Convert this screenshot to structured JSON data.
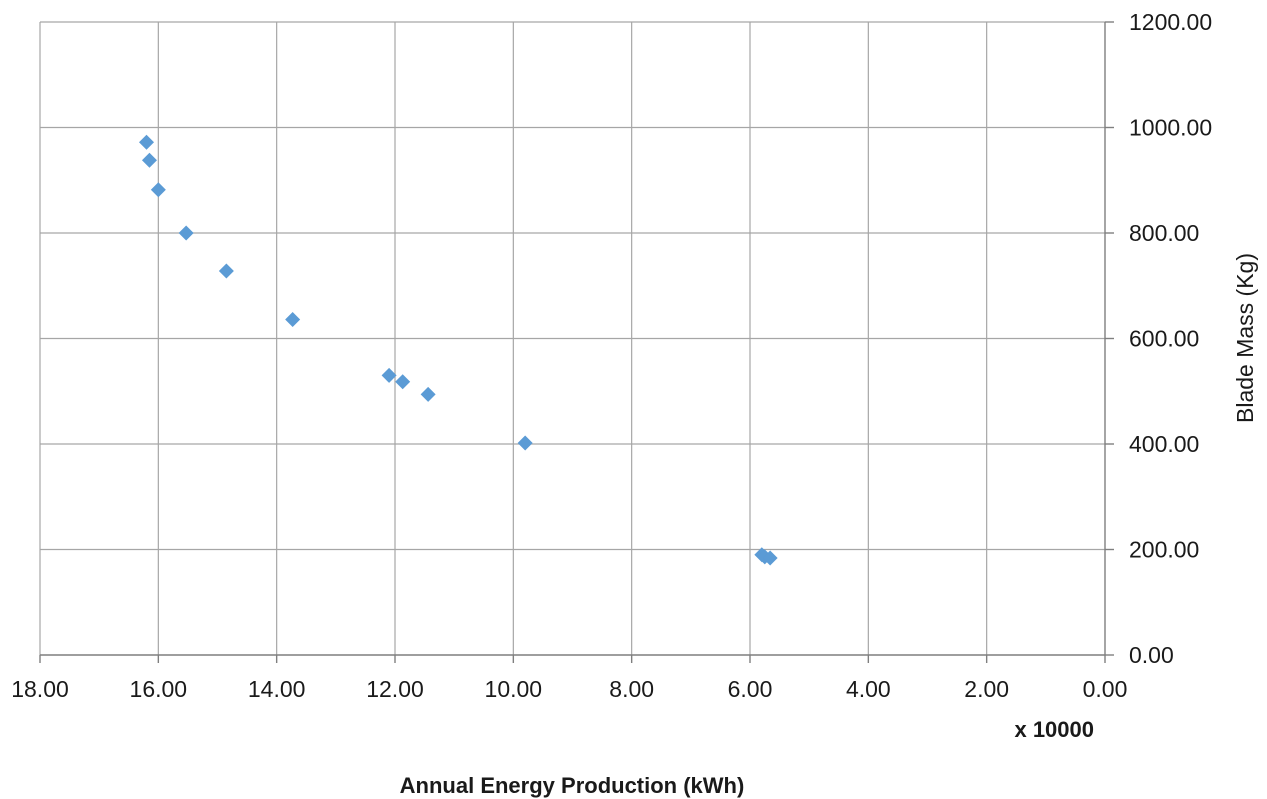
{
  "chart_data": {
    "type": "scatter",
    "xlabel": "Annual Energy Production (kWh)",
    "x_multiplier_label": "x 10000",
    "ylabel": "Blade Mass (Kg)",
    "xlim": [
      0,
      18
    ],
    "x_reversed": true,
    "ylim": [
      0,
      1200
    ],
    "x_ticks": [
      {
        "value": 18,
        "label": "18.00"
      },
      {
        "value": 16,
        "label": "16.00"
      },
      {
        "value": 14,
        "label": "14.00"
      },
      {
        "value": 12,
        "label": "12.00"
      },
      {
        "value": 10,
        "label": "10.00"
      },
      {
        "value": 8,
        "label": "8.00"
      },
      {
        "value": 6,
        "label": "6.00"
      },
      {
        "value": 4,
        "label": "4.00"
      },
      {
        "value": 2,
        "label": "2.00"
      },
      {
        "value": 0,
        "label": "0.00"
      }
    ],
    "y_ticks": [
      {
        "value": 0,
        "label": "0.00"
      },
      {
        "value": 200,
        "label": "200.00"
      },
      {
        "value": 400,
        "label": "400.00"
      },
      {
        "value": 600,
        "label": "600.00"
      },
      {
        "value": 800,
        "label": "800.00"
      },
      {
        "value": 1000,
        "label": "1000.00"
      },
      {
        "value": 1200,
        "label": "1200.00"
      }
    ],
    "grid": true,
    "legend": "none",
    "marker": "diamond",
    "marker_color": "#5b9bd5",
    "series": [
      {
        "points": [
          {
            "x": 16.2,
            "y": 972
          },
          {
            "x": 16.15,
            "y": 938
          },
          {
            "x": 16.0,
            "y": 882
          },
          {
            "x": 15.53,
            "y": 800
          },
          {
            "x": 14.85,
            "y": 728
          },
          {
            "x": 13.73,
            "y": 636
          },
          {
            "x": 12.1,
            "y": 530
          },
          {
            "x": 11.87,
            "y": 518
          },
          {
            "x": 11.44,
            "y": 494
          },
          {
            "x": 9.8,
            "y": 402
          },
          {
            "x": 5.8,
            "y": 190
          },
          {
            "x": 5.75,
            "y": 186
          },
          {
            "x": 5.66,
            "y": 184
          }
        ]
      }
    ]
  }
}
